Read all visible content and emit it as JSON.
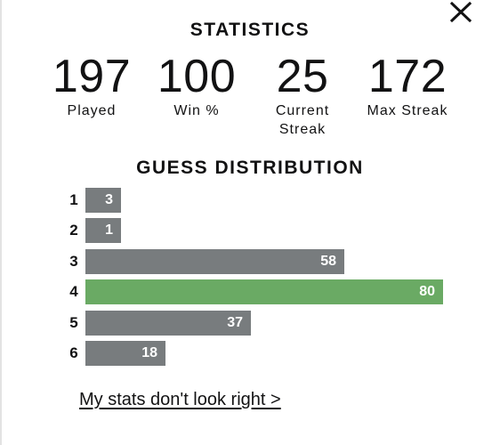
{
  "modal": {
    "close_icon": "close-icon",
    "statistics_title": "STATISTICS",
    "distribution_title": "GUESS DISTRIBUTION",
    "help_link": "My stats don't look right >"
  },
  "stats": [
    {
      "value": "197",
      "label": "Played"
    },
    {
      "value": "100",
      "label": "Win %"
    },
    {
      "value": "25",
      "label": "Current Streak"
    },
    {
      "value": "172",
      "label": "Max Streak"
    }
  ],
  "distribution": [
    {
      "guess": "1",
      "count": 3
    },
    {
      "guess": "2",
      "count": 1
    },
    {
      "guess": "3",
      "count": 58
    },
    {
      "guess": "4",
      "count": 80
    },
    {
      "guess": "5",
      "count": 37
    },
    {
      "guess": "6",
      "count": 18
    }
  ],
  "highlighted_guess": "4",
  "colors": {
    "bar": "#787c7e",
    "highlight": "#6aaa64",
    "text": "#121213"
  }
}
